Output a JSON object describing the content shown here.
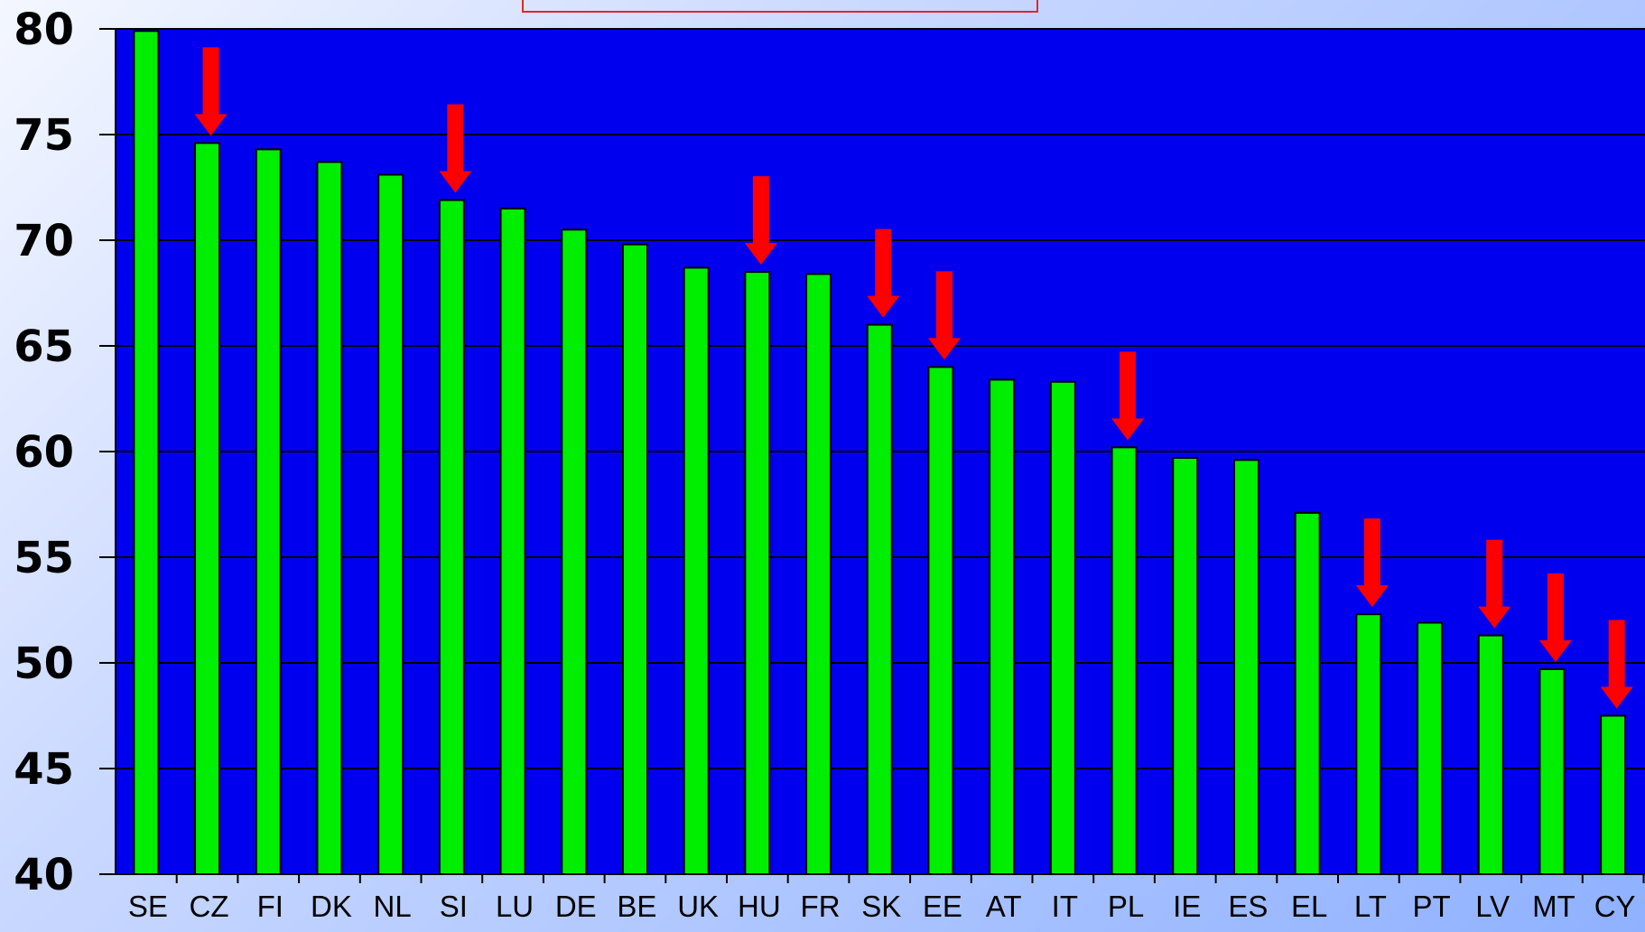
{
  "colors": {
    "plot_background": "#0000ee",
    "bar_fill": "#00ee00",
    "arrow": "#ff0000",
    "gridline": "#000000",
    "title_box_border": "#e0282a"
  },
  "chart_data": {
    "type": "bar",
    "title": "",
    "xlabel": "",
    "ylabel": "",
    "ylim": [
      40,
      80
    ],
    "yticks": [
      40,
      45,
      50,
      55,
      60,
      65,
      70,
      75,
      80
    ],
    "grid": true,
    "categories": [
      "SE",
      "CZ",
      "FI",
      "DK",
      "NL",
      "SI",
      "LU",
      "DE",
      "BE",
      "UK",
      "HU",
      "FR",
      "SK",
      "EE",
      "AT",
      "IT",
      "PL",
      "IE",
      "ES",
      "EL",
      "LT",
      "PT",
      "LV",
      "MT",
      "CY"
    ],
    "values": [
      79.9,
      74.6,
      74.3,
      73.7,
      73.1,
      71.9,
      71.5,
      70.5,
      69.8,
      68.7,
      68.5,
      68.4,
      66.0,
      64.0,
      63.4,
      63.3,
      60.2,
      59.7,
      59.6,
      57.1,
      52.3,
      51.9,
      51.3,
      49.7,
      47.5
    ],
    "highlighted": [
      "CZ",
      "SI",
      "HU",
      "SK",
      "EE",
      "PL",
      "LT",
      "LV",
      "MT",
      "CY"
    ]
  }
}
